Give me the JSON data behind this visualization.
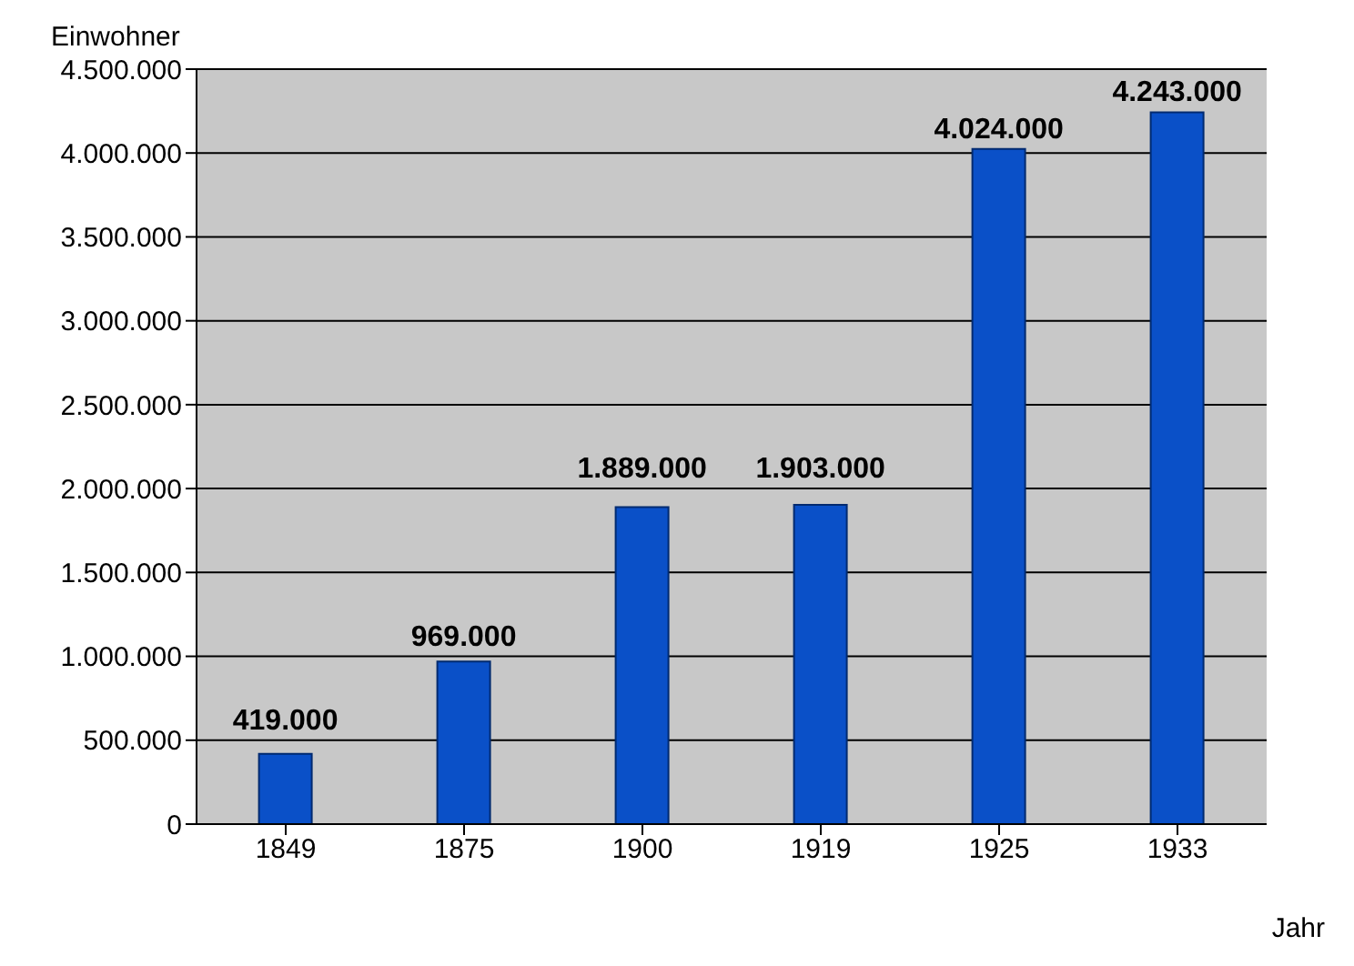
{
  "chart_data": {
    "type": "bar",
    "xlabel": "Jahr",
    "ylabel": "Einwohner",
    "categories": [
      "1849",
      "1875",
      "1900",
      "1919",
      "1925",
      "1933"
    ],
    "values": [
      419000,
      969000,
      1889000,
      1903000,
      4024000,
      4243000
    ],
    "value_labels": [
      "419.000",
      "969.000",
      "1.889.000",
      "1.903.000",
      "4.024.000",
      "4.243.000"
    ],
    "color": "#0a50c8",
    "ylim": [
      0,
      4500000
    ],
    "yticks": [
      {
        "value": 0,
        "label": "0"
      },
      {
        "value": 500000,
        "label": "500.000"
      },
      {
        "value": 1000000,
        "label": "1.000.000"
      },
      {
        "value": 1500000,
        "label": "1.500.000"
      },
      {
        "value": 2000000,
        "label": "2.000.000"
      },
      {
        "value": 2500000,
        "label": "2.500.000"
      },
      {
        "value": 3000000,
        "label": "3.000.000"
      },
      {
        "value": 3500000,
        "label": "3.500.000"
      },
      {
        "value": 4000000,
        "label": "4.000.000"
      },
      {
        "value": 4500000,
        "label": "4.500.000"
      }
    ],
    "grid": "y",
    "legend": false
  }
}
